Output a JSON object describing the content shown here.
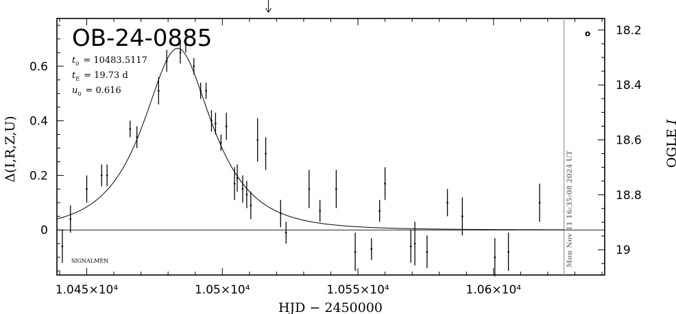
{
  "chart_data": {
    "type": "scatter",
    "title": "OB-24-0885",
    "params": {
      "t0_label": "t",
      "t0_sub": "0",
      "t0_value": "= 10483.5117",
      "tE_label": "t",
      "tE_sub": "E",
      "tE_value": "= 19.73  d",
      "u0_label": "u",
      "u0_sub": "0",
      "u0_value": "= 0.616"
    },
    "xlabel": "HJD  −  2450000",
    "ylabel_left": "Δ(I,R,Z,U)",
    "ylabel_right_prefix": "OGLE ",
    "ylabel_right_italic": "I",
    "signature": "SIGNALMEN",
    "timestamp": "Mon Nov 11 16:35:08 2024 UT",
    "legend_marker": "o",
    "xlim": [
      10439,
      10641
    ],
    "ylim_left": [
      -0.165,
      0.775
    ],
    "ylim_right_mag": [
      18.158,
      19.092
    ],
    "x_ticks": [
      {
        "value": 10450,
        "label": "1.045×10⁴"
      },
      {
        "value": 10500,
        "label": "1.05×10⁴"
      },
      {
        "value": 10550,
        "label": "1.055×10⁴"
      },
      {
        "value": 10600,
        "label": "1.06×10⁴"
      }
    ],
    "y_ticks_left": [
      {
        "value": 0,
        "label": "0"
      },
      {
        "value": 0.2,
        "label": "0.2"
      },
      {
        "value": 0.4,
        "label": "0.4"
      },
      {
        "value": 0.6,
        "label": "0.6"
      }
    ],
    "y_ticks_right": [
      {
        "value": 18.2,
        "label": "18.2"
      },
      {
        "value": 18.4,
        "label": "18.4"
      },
      {
        "value": 18.6,
        "label": "18.6"
      },
      {
        "value": 18.8,
        "label": "18.8"
      },
      {
        "value": 19.0,
        "label": "19"
      }
    ],
    "current_time_x": 10626,
    "arrow_x": 10517,
    "model": {
      "t0": 10483.5117,
      "tE": 19.73,
      "u0": 0.616
    },
    "points": [
      {
        "x": 10441,
        "y": -0.06,
        "err": 0.06
      },
      {
        "x": 10444,
        "y": 0.04,
        "err": 0.05
      },
      {
        "x": 10450,
        "y": 0.15,
        "err": 0.05
      },
      {
        "x": 10455.5,
        "y": 0.2,
        "err": 0.04
      },
      {
        "x": 10457.5,
        "y": 0.2,
        "err": 0.04
      },
      {
        "x": 10466,
        "y": 0.37,
        "err": 0.03
      },
      {
        "x": 10468.5,
        "y": 0.34,
        "err": 0.04
      },
      {
        "x": 10476.5,
        "y": 0.51,
        "err": 0.05
      },
      {
        "x": 10479.5,
        "y": 0.62,
        "err": 0.04
      },
      {
        "x": 10484.5,
        "y": 0.65,
        "err": 0.04
      },
      {
        "x": 10486.5,
        "y": 0.68,
        "err": 0.03
      },
      {
        "x": 10489.5,
        "y": 0.6,
        "err": 0.03
      },
      {
        "x": 10492,
        "y": 0.51,
        "err": 0.03
      },
      {
        "x": 10494,
        "y": 0.51,
        "err": 0.03
      },
      {
        "x": 10496,
        "y": 0.4,
        "err": 0.04
      },
      {
        "x": 10497.5,
        "y": 0.39,
        "err": 0.04
      },
      {
        "x": 10499.5,
        "y": 0.32,
        "err": 0.03
      },
      {
        "x": 10501.5,
        "y": 0.38,
        "err": 0.05
      },
      {
        "x": 10504.5,
        "y": 0.17,
        "err": 0.06
      },
      {
        "x": 10505.5,
        "y": 0.19,
        "err": 0.05
      },
      {
        "x": 10507.5,
        "y": 0.15,
        "err": 0.05
      },
      {
        "x": 10509,
        "y": 0.13,
        "err": 0.05
      },
      {
        "x": 10510.5,
        "y": 0.09,
        "err": 0.05
      },
      {
        "x": 10513,
        "y": 0.33,
        "err": 0.08
      },
      {
        "x": 10516,
        "y": 0.28,
        "err": 0.06
      },
      {
        "x": 10521.5,
        "y": 0.06,
        "err": 0.05
      },
      {
        "x": 10523.5,
        "y": -0.01,
        "err": 0.04
      },
      {
        "x": 10532,
        "y": 0.15,
        "err": 0.07
      },
      {
        "x": 10536,
        "y": 0.07,
        "err": 0.04
      },
      {
        "x": 10542,
        "y": 0.15,
        "err": 0.07
      },
      {
        "x": 10549,
        "y": -0.08,
        "err": 0.07
      },
      {
        "x": 10555,
        "y": -0.07,
        "err": 0.04
      },
      {
        "x": 10558,
        "y": 0.07,
        "err": 0.04
      },
      {
        "x": 10560,
        "y": 0.17,
        "err": 0.06
      },
      {
        "x": 10569.5,
        "y": -0.06,
        "err": 0.06
      },
      {
        "x": 10571,
        "y": -0.05,
        "err": 0.08
      },
      {
        "x": 10575.5,
        "y": -0.08,
        "err": 0.06
      },
      {
        "x": 10583,
        "y": 0.1,
        "err": 0.05
      },
      {
        "x": 10588.5,
        "y": 0.05,
        "err": 0.07
      },
      {
        "x": 10600.5,
        "y": -0.1,
        "err": 0.07
      },
      {
        "x": 10605.5,
        "y": -0.08,
        "err": 0.07
      },
      {
        "x": 10617,
        "y": 0.1,
        "err": 0.07
      }
    ]
  }
}
